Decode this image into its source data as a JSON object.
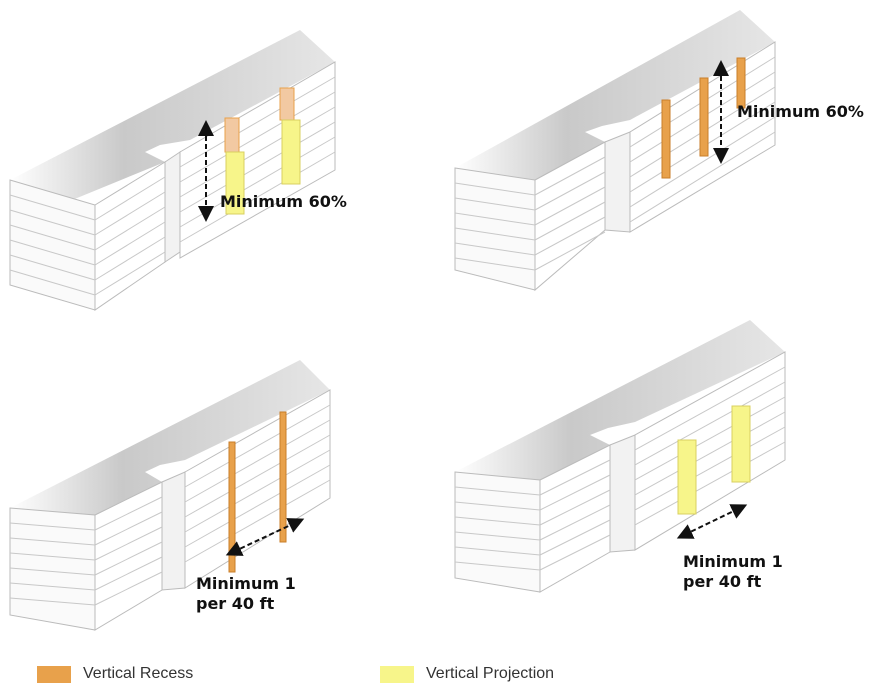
{
  "panels": [
    {
      "id": "top-left",
      "label": "Minimum 60%",
      "features": [
        "recess",
        "projection"
      ]
    },
    {
      "id": "top-right",
      "label": "Minimum 60%",
      "features": [
        "recess"
      ]
    },
    {
      "id": "bottom-left",
      "label": "Minimum 1\nper 40 ft",
      "features": [
        "recess"
      ]
    },
    {
      "id": "bottom-right",
      "label": "Minimum 1\nper 40 ft",
      "features": [
        "projection"
      ]
    }
  ],
  "legend": {
    "recess_label": "Vertical Recess",
    "projection_label": "Vertical Projection",
    "recess_color": "#e8a14b",
    "projection_color": "#f7f58a"
  }
}
